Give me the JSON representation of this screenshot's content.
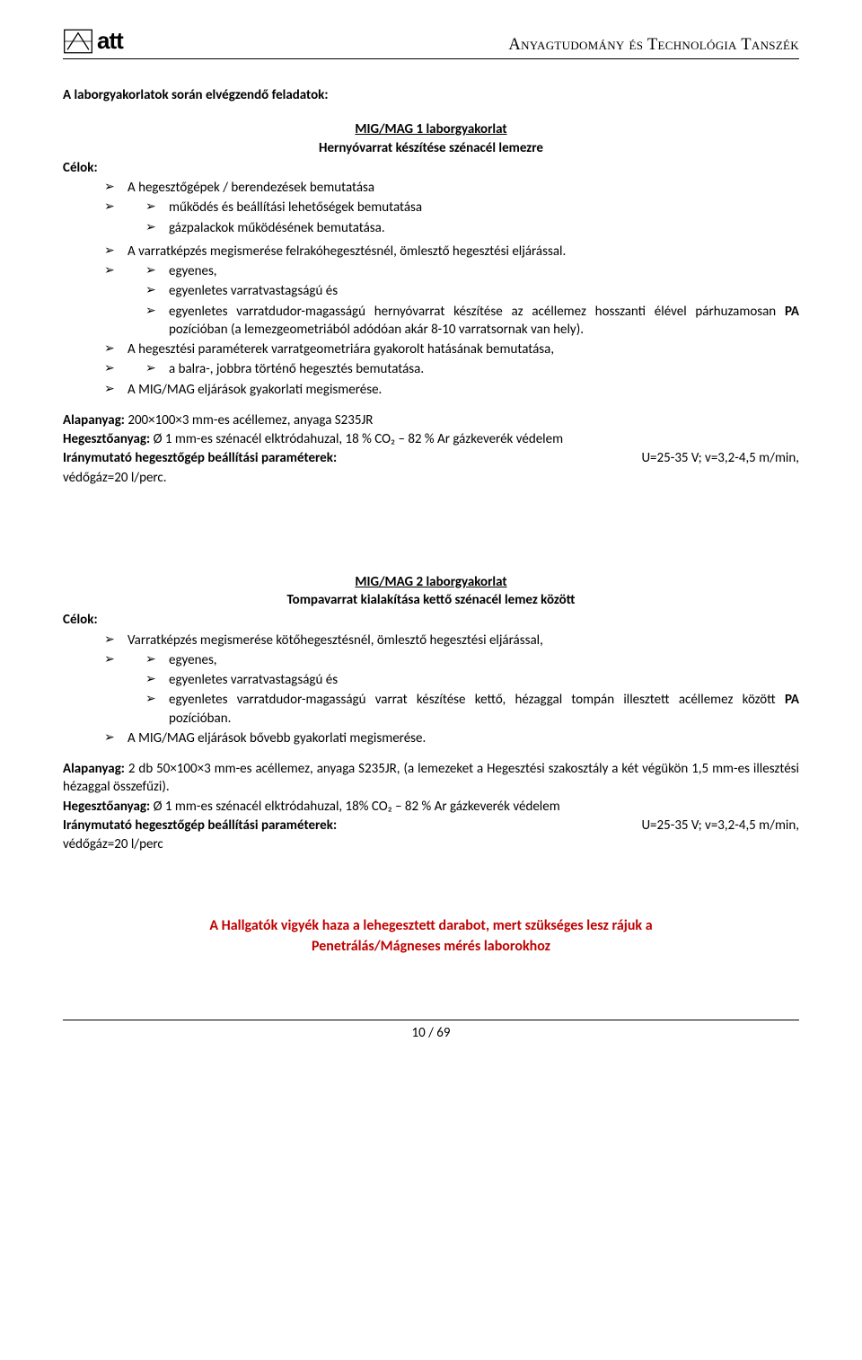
{
  "header": {
    "logo_text": "att",
    "dept": "Anyagtudomány és Technológia Tanszék"
  },
  "section_title": "A laborgyakorlatok során elvégzendő feladatok:",
  "lab1": {
    "title": "MIG/MAG 1 laborgyakorlat",
    "subtitle": "Hernyóvarrat készítése szénacél lemezre",
    "celok_label": "Célok:",
    "items1": [
      "A hegesztőgépek / berendezések bemutatása",
      "működés és beállítási lehetőségek bemutatása",
      "gázpalackok működésének bemutatása.",
      "A varratképzés megismerése felrakóhegesztésnél, ömlesztő hegesztési eljárással.",
      "egyenes,",
      "egyenletes varratvastagságú és",
      "egyenletes varratdudor-magasságú hernyóvarrat készítése az acéllemez hosszanti élével párhuzamosan PA pozícióban (a lemezgeometriából adódóan akár 8-10 varratsornak van hely).",
      "A hegesztési paraméterek varratgeometriára gyakorolt hatásának bemutatása,",
      "a balra-, jobbra történő hegesztés bemutatása.",
      "A MIG/MAG eljárások gyakorlati megismerése."
    ],
    "alap_label": "Alapanyag:",
    "alap_text": " 200×100×3 mm-es acéllemez, anyaga S235JR",
    "heg_label": "Hegesztőanyag:",
    "heg_text": " Ø 1 mm-es szénacél elktródahuzal, 18 % CO₂ – 82 % Ar gázkeverék védelem",
    "params_label": "Iránymutató   hegesztőgép   beállítási   paraméterek:",
    "params_vals": "U=25-35 V;    v=3,2-4,5 m/min,",
    "gas": "védőgáz=20 l/perc."
  },
  "lab2": {
    "title": "MIG/MAG 2 laborgyakorlat",
    "subtitle": "Tompavarrat kialakítása kettő szénacél lemez között",
    "celok_label": "Célok:",
    "items_lvl1": [
      "Varratképzés megismerése kötőhegesztésnél, ömlesztő hegesztési eljárással,"
    ],
    "items_lvl2": [
      "egyenes,",
      "egyenletes varratvastagságú és",
      "egyenletes varratdudor-magasságú varrat készítése kettő, hézaggal tompán illesztett acéllemez között PA pozícióban."
    ],
    "items_lvl1b": [
      "A MIG/MAG eljárások bővebb gyakorlati megismerése."
    ],
    "alap_label": "Alapanyag:",
    "alap_text": " 2 db 50×100×3 mm-es acéllemez, anyaga S235JR, (a lemezeket a Hegesztési szakosztály a két végükön 1,5 mm-es illesztési hézaggal összefűzi).",
    "heg_label": "Hegesztőanyag:",
    "heg_text": " Ø 1 mm-es szénacél elktródahuzal, 18% CO₂ – 82 % Ar gázkeverék védelem",
    "params_label": "Iránymutató   hegesztőgép   beállítási   paraméterek:",
    "params_vals": "U=25-35 V;    v=3,2-4,5 m/min,",
    "gas": "védőgáz=20 l/perc"
  },
  "red_note_l1": "A Hallgatók vigyék haza a lehegesztett darabot, mert szükséges lesz rájuk a",
  "red_note_l2": "Penetrálás/Mágneses mérés laborokhoz",
  "page_num": "10 / 69"
}
